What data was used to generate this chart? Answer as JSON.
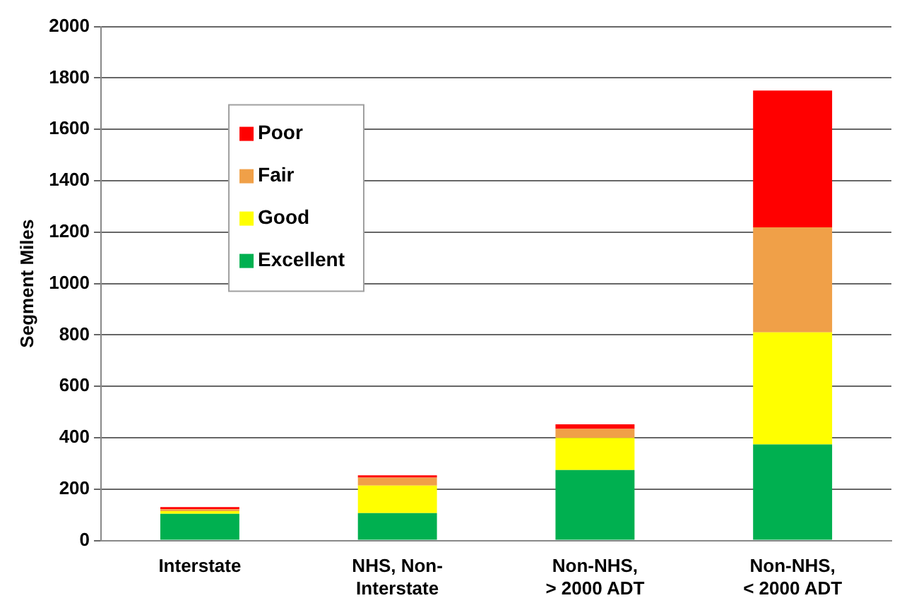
{
  "chart_data": {
    "type": "bar",
    "stacked": true,
    "ylabel": "Segment Miles",
    "categories": [
      "Interstate",
      "NHS, Non-\nInterstate",
      "Non-NHS,\n> 2000 ADT",
      "Non-NHS,\n< 2000 ADT"
    ],
    "series": [
      {
        "name": "Excellent",
        "color": "#00b050",
        "values": [
          104,
          107,
          274,
          374
        ]
      },
      {
        "name": "Good",
        "color": "#ffff00",
        "values": [
          10,
          107,
          125,
          436
        ]
      },
      {
        "name": "Fair",
        "color": "#f0a048",
        "values": [
          8,
          31,
          35,
          409
        ]
      },
      {
        "name": "Poor",
        "color": "#ff0000",
        "values": [
          8,
          9,
          18,
          532
        ]
      }
    ],
    "ylim": [
      0,
      2000
    ],
    "yticks": [
      0,
      200,
      400,
      600,
      800,
      1000,
      1200,
      1400,
      1600,
      1800,
      2000
    ],
    "grid": "y",
    "legend": "top left"
  }
}
